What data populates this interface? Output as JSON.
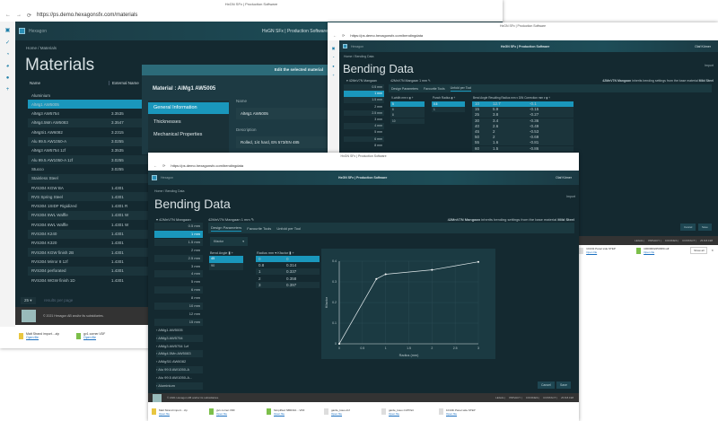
{
  "browser": {
    "title": "HxGN SFx | Production Software",
    "url_materials": "https://ps.demo.hexagonsfx.com/materials",
    "url_bending": "https://ps.demo.hexagonsfx.com/bendingdata"
  },
  "app": {
    "brand": "Hexagon",
    "header_title": "HxGN SFx | Production Software",
    "user": "Olaf Körner",
    "copyright": "© 2021 Hexagon AB and/or its subsidiaries.",
    "footer_links": [
      "LEGAL",
      "PRIVACY",
      "COOKIES",
      "CONTACT",
      "v5.8.8.198"
    ],
    "cancel": "Cancel",
    "save": "Save",
    "import": "Import"
  },
  "materials": {
    "breadcrumb": "Home / Materials",
    "title": "Materials",
    "col_name": "Name",
    "col_external": "External Name",
    "per_page": "25",
    "per_page_label": "results per page",
    "rows": [
      [
        "Aluminium",
        ""
      ],
      [
        "AlMg1 AW5005",
        ""
      ],
      [
        "AlMg3 AW5754",
        "3.3535"
      ],
      [
        "AlMg4.5Mn AW5083",
        "3.3547"
      ],
      [
        "AlMgSi1 AW6082",
        "3.2315"
      ],
      [
        "Alu 99.5 AW1050-A",
        "3.0255"
      ],
      [
        "AlMg3 AW5754 1zf",
        "3.3535"
      ],
      [
        "Alu 99.5 AW1050-A 1zf",
        "3.0255"
      ],
      [
        "Stucco",
        "3.0255"
      ],
      [
        "Stainless Steel",
        ""
      ],
      [
        "RVS304 KGW BA",
        "1.4301"
      ],
      [
        "RVS Spring Steel",
        "1.4301"
      ],
      [
        "RVS304 1SIDF Rigidized",
        "1.4301 R"
      ],
      [
        "RVS304 5WL Waffle",
        "1.4301 W"
      ],
      [
        "RVS304 6WL Waffle",
        "1.4301 W"
      ],
      [
        "RVS304 K240",
        "1.4301"
      ],
      [
        "RVS304 K320",
        "1.4301"
      ],
      [
        "RVS304 KGW finish 2B",
        "1.4301"
      ],
      [
        "RVS304 Mirror 8 1zf",
        "1.4301"
      ],
      [
        "RVS304 perforated",
        "1.4301"
      ],
      [
        "RVS304 WGW finish 1D",
        "1.4301"
      ]
    ]
  },
  "modal": {
    "title": "Edit the selected material",
    "material_label": "Material : AlMg1 AW5005",
    "menu": [
      "General Information",
      "Thicknesses",
      "Mechanical Properties"
    ],
    "name_label": "Name",
    "name_value": "AlMg1 AW5005",
    "desc_label": "Description",
    "desc_value": "Rolled, 1/4 hard, EN 573/EN 485"
  },
  "bending": {
    "breadcrumb": "Home / Bending Data",
    "title": "Bending Data",
    "material": "42MnV7N Mangaan",
    "selected": "42MnV7N Mangaan 1 mm ✎",
    "inherits_prefix": "42MnV7N Mangaan",
    "inherits_text": " inherits bending settings from the base material ",
    "base_material": "Mild Steel",
    "tabs": [
      "Design Parameters",
      "Favourite Tools",
      "Unfold per Tool"
    ],
    "thicknesses": [
      "0.5 mm",
      "1 mm",
      "1.5 mm",
      "2 mm",
      "2.5 mm",
      "3 mm",
      "4 mm",
      "5 mm",
      "6 mm",
      "8 mm",
      "10 mm",
      "12 mm",
      "15 mm"
    ],
    "other_materials": [
      "AlMg1 AW5005",
      "AlMg3 AW5754",
      "AlMg3 AW5754 1zf",
      "AlMg4.5Mn AW5083",
      "AlMgSi1 AW6082",
      "Alu 99.5 AW1050-A",
      "Alu 99.5 AW1050-A...",
      "Aluminium"
    ],
    "vwidth_header": "V-width mm ▾",
    "vwidths": [
      "5",
      "6",
      "8",
      "10"
    ],
    "punch_header": "Punch Radius",
    "punch": [
      "0.5",
      "1"
    ],
    "bend_header": [
      "Bend Angle",
      "Resulting Radius mm ▾",
      "DIN Correction mm ▾"
    ],
    "bend_rows": [
      [
        "10",
        "12.7",
        "-0.1"
      ],
      [
        "15",
        "5.9",
        "-0.15"
      ],
      [
        "25",
        "3.8",
        "-0.27"
      ],
      [
        "30",
        "3.4",
        "-0.36"
      ],
      [
        "40",
        "2.6",
        "-0.49"
      ],
      [
        "45",
        "2",
        "-0.53"
      ],
      [
        "50",
        "2",
        "-0.69"
      ],
      [
        "55",
        "1.6",
        "-0.81"
      ],
      [
        "60",
        "1.5",
        "-0.86"
      ]
    ],
    "kfactor_select": "Kfactor",
    "angle_header": "Bend Angle",
    "angles": [
      "45",
      "90"
    ],
    "radius_header": [
      "Radius mm ▾",
      "Kfactor"
    ]
  },
  "chart_data": {
    "type": "line",
    "xlabel": "Radius (mm)",
    "ylabel": "Kfactor",
    "xlim": [
      0,
      3
    ],
    "ylim": [
      0,
      0.4
    ],
    "x": [
      0,
      0.8,
      1,
      2,
      3
    ],
    "y": [
      0,
      0.314,
      0.337,
      0.358,
      0.397
    ],
    "xticks": [
      "0",
      "0.5",
      "1",
      "1.5",
      "2",
      "2.5",
      "3"
    ],
    "yticks": [
      "0",
      "0.1",
      "0.2",
      "0.3",
      "0.4"
    ],
    "grid": true
  },
  "downloads": {
    "items": [
      [
        "Matt Strand import....zip",
        "Open file"
      ],
      [
        "gv1 corner.VDF",
        "Open file"
      ],
      [
        "Simplified NBD310....VDF",
        "Open file"
      ],
      [
        "garde_kouo.dxf",
        "Open file"
      ],
      [
        "garde_kouo.CATPart",
        "Open file"
      ],
      [
        "10134t Panel side.STEP",
        "Open file"
      ],
      [
        "10000002253380.sdf",
        "Open file"
      ]
    ],
    "show_all": "Show all"
  }
}
